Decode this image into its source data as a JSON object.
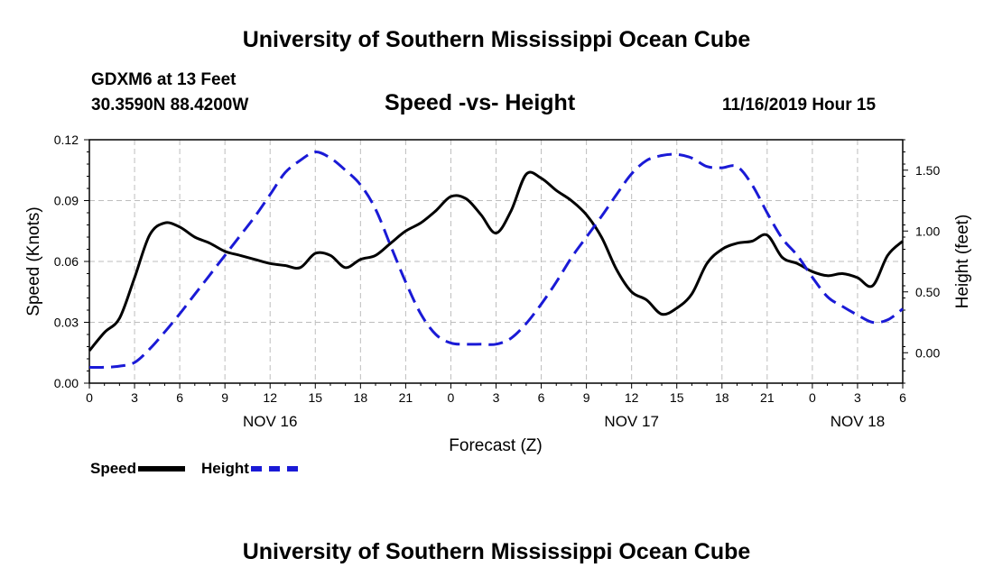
{
  "header": {
    "title_top": "University of Southern Mississippi Ocean Cube",
    "station": "GDXM6 at 13 Feet",
    "coords": "30.3590N 88.4200W",
    "chart_title": "Speed -vs- Height",
    "datestamp": "11/16/2019 Hour 15"
  },
  "footer": {
    "title_bottom": "University of Southern Mississippi Ocean Cube"
  },
  "legend": {
    "speed_label": "Speed",
    "height_label": "Height"
  },
  "colors": {
    "speed": "#000000",
    "height": "#1a1ad6",
    "grid": "#bdbdbd"
  },
  "chart_data": {
    "type": "line",
    "title": "Speed -vs- Height",
    "xlabel": "Forecast (Z)",
    "ylabel": "Speed (Knots)",
    "y2label": "Height (feet)",
    "xlim": [
      0,
      54
    ],
    "ylim": [
      0,
      0.12
    ],
    "y2lim": [
      -0.25,
      1.75
    ],
    "grid": true,
    "x_ticks": [
      0,
      3,
      6,
      9,
      12,
      15,
      18,
      21,
      24,
      27,
      30,
      33,
      36,
      39,
      42,
      45,
      48,
      51,
      54
    ],
    "x_tick_labels": [
      "0",
      "3",
      "6",
      "9",
      "12",
      "15",
      "18",
      "21",
      "0",
      "3",
      "6",
      "9",
      "12",
      "15",
      "18",
      "21",
      "0",
      "3",
      "6"
    ],
    "y_ticks": [
      0,
      0.03,
      0.06,
      0.09,
      0.12
    ],
    "y_tick_labels": [
      "0.00",
      "0.03",
      "0.06",
      "0.09",
      "0.12"
    ],
    "y2_ticks": [
      0,
      0.5,
      1.0,
      1.5
    ],
    "y2_tick_labels": [
      "0.00",
      "0.50",
      "1.00",
      "1.50"
    ],
    "day_labels": [
      {
        "x": 12,
        "label": "NOV 16"
      },
      {
        "x": 36,
        "label": "NOV 17"
      },
      {
        "x": 51,
        "label": "NOV 18"
      }
    ],
    "series": [
      {
        "name": "Speed",
        "axis": "left",
        "style": "solid",
        "x": [
          0,
          1,
          2,
          3,
          4,
          5,
          6,
          7,
          8,
          9,
          10,
          11,
          12,
          13,
          14,
          15,
          16,
          17,
          18,
          19,
          20,
          21,
          22,
          23,
          24,
          25,
          26,
          27,
          28,
          29,
          30,
          31,
          32,
          33,
          34,
          35,
          36,
          37,
          38,
          39,
          40,
          41,
          42,
          43,
          44,
          45,
          46,
          47,
          48,
          49,
          50,
          51,
          52,
          53,
          54
        ],
        "values": [
          0.016,
          0.025,
          0.032,
          0.052,
          0.073,
          0.079,
          0.077,
          0.072,
          0.069,
          0.065,
          0.063,
          0.061,
          0.059,
          0.058,
          0.057,
          0.064,
          0.063,
          0.057,
          0.061,
          0.063,
          0.069,
          0.075,
          0.079,
          0.085,
          0.092,
          0.091,
          0.083,
          0.074,
          0.085,
          0.103,
          0.101,
          0.095,
          0.09,
          0.083,
          0.072,
          0.056,
          0.045,
          0.041,
          0.034,
          0.037,
          0.044,
          0.059,
          0.066,
          0.069,
          0.07,
          0.073,
          0.062,
          0.059,
          0.055,
          0.053,
          0.054,
          0.052,
          0.048,
          0.063,
          0.07
        ]
      },
      {
        "name": "Height",
        "axis": "right",
        "style": "dashed",
        "x": [
          0,
          1,
          2,
          3,
          4,
          5,
          6,
          7,
          8,
          9,
          10,
          11,
          12,
          13,
          14,
          15,
          16,
          17,
          18,
          19,
          20,
          21,
          22,
          23,
          24,
          25,
          26,
          27,
          28,
          29,
          30,
          31,
          32,
          33,
          34,
          35,
          36,
          37,
          38,
          39,
          40,
          41,
          42,
          43,
          44,
          45,
          46,
          47,
          48,
          49,
          50,
          51,
          52,
          53,
          54
        ],
        "values": [
          -0.12,
          -0.12,
          -0.11,
          -0.08,
          0.03,
          0.17,
          0.32,
          0.48,
          0.64,
          0.8,
          0.96,
          1.12,
          1.3,
          1.48,
          1.58,
          1.65,
          1.6,
          1.5,
          1.38,
          1.18,
          0.88,
          0.58,
          0.32,
          0.15,
          0.08,
          0.07,
          0.07,
          0.07,
          0.12,
          0.24,
          0.4,
          0.58,
          0.78,
          0.95,
          1.12,
          1.3,
          1.47,
          1.58,
          1.62,
          1.63,
          1.6,
          1.53,
          1.52,
          1.53,
          1.38,
          1.15,
          0.94,
          0.8,
          0.62,
          0.46,
          0.38,
          0.31,
          0.25,
          0.27,
          0.36
        ]
      }
    ]
  }
}
